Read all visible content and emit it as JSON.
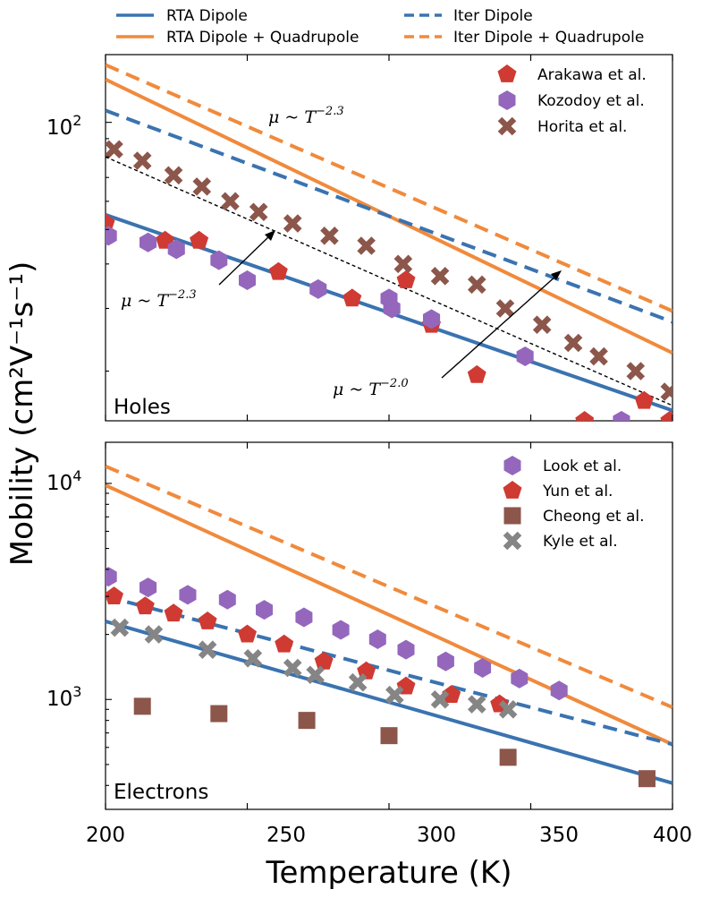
{
  "colors": {
    "blue": "#3a73b0",
    "orange": "#f08a3c",
    "red": "#cf3a32",
    "purple": "#9467bd",
    "brown": "#8c564b",
    "gray": "#858585"
  },
  "chart_data": {
    "type": "line",
    "xlabel": "Temperature (K)",
    "ylabel": "Mobility (cm²V⁻¹s⁻¹)",
    "xlim": [
      200,
      400
    ],
    "xticks": [
      200,
      250,
      300,
      350,
      400
    ],
    "xtick_labels": [
      "200",
      "250",
      "300",
      "350",
      "400"
    ],
    "top_legend": [
      {
        "label": "RTA Dipole",
        "color": "blue",
        "dash": "solid"
      },
      {
        "label": "RTA Dipole + Quadrupole",
        "color": "orange",
        "dash": "solid"
      },
      {
        "label": "Iter Dipole",
        "color": "blue",
        "dash": "dashed"
      },
      {
        "label": "Iter Dipole + Quadrupole",
        "color": "orange",
        "dash": "dashed"
      }
    ],
    "panels": [
      {
        "label": "Holes",
        "yscale": "log",
        "ylim": [
          14.5,
          155
        ],
        "yticks": [
          100
        ],
        "ytick_base": "10",
        "ytick_exp": [
          "2"
        ],
        "lines": [
          {
            "name": "RTA Dipole",
            "color": "blue",
            "dash": "solid",
            "x": [
              200,
              400
            ],
            "y": [
              55,
              15.5
            ]
          },
          {
            "name": "RTA Dipole + Quadrupole",
            "color": "orange",
            "dash": "solid",
            "x": [
              200,
              400
            ],
            "y": [
              132,
              22.5
            ]
          },
          {
            "name": "Iter Dipole",
            "color": "blue",
            "dash": "dashed",
            "x": [
              200,
              400
            ],
            "y": [
              108,
              27.5
            ]
          },
          {
            "name": "Iter Dipole + Quadrupole",
            "color": "orange",
            "dash": "dashed",
            "x": [
              200,
              400
            ],
            "y": [
              145,
              29.5
            ]
          },
          {
            "name": "fit",
            "color": "black",
            "dash": "fine",
            "x": [
              200,
              400
            ],
            "y": [
              80,
              16
            ]
          }
        ],
        "scatter": [
          {
            "name": "Arakawa et al.",
            "marker": "pentagon",
            "color": "red",
            "x": [
              200,
              221,
              233,
              261,
              287,
              306,
              315,
              331,
              369,
              390,
              399
            ],
            "y": [
              52,
              46.5,
              46.5,
              38,
              32,
              36,
              27,
              19.5,
              14.5,
              16.5,
              14.5
            ]
          },
          {
            "name": "Kozodoy et al.",
            "marker": "hexagon",
            "color": "purple",
            "x": [
              201,
              215,
              225,
              240,
              250,
              275,
              300,
              301,
              315,
              348,
              382
            ],
            "y": [
              48,
              46,
              44,
              41,
              36,
              34,
              32,
              30,
              28,
              22,
              14.5
            ]
          },
          {
            "name": "Horita et al.",
            "marker": "x",
            "color": "brown",
            "x": [
              203,
              213,
              224,
              234,
              244,
              254,
              266,
              279,
              292,
              305,
              318,
              331,
              341,
              354,
              365,
              374,
              387,
              399
            ],
            "y": [
              84,
              78,
              71,
              66,
              60,
              56,
              52,
              48,
              45,
              40,
              37,
              35,
              30,
              27,
              24,
              22,
              20,
              17.5
            ]
          }
        ],
        "legend": [
          "Arakawa et al.",
          "Kozodoy et al.",
          "Horita et al."
        ],
        "annotations": [
          {
            "base": "μ ~ T",
            "exp": "−2.3"
          },
          {
            "base": "μ ~ T",
            "exp": "−2.3"
          },
          {
            "base": "μ ~ T",
            "exp": "−2.0"
          }
        ]
      },
      {
        "label": "Electrons",
        "yscale": "log",
        "ylim": [
          310,
          15500
        ],
        "yticks": [
          1000,
          10000
        ],
        "ytick_base": "10",
        "ytick_exp": [
          "3",
          "4"
        ],
        "lines": [
          {
            "name": "RTA Dipole",
            "color": "blue",
            "dash": "solid",
            "x": [
              200,
              400
            ],
            "y": [
              2300,
              410
            ]
          },
          {
            "name": "RTA Dipole + Quadrupole",
            "color": "orange",
            "dash": "solid",
            "x": [
              200,
              400
            ],
            "y": [
              9800,
              620
            ]
          },
          {
            "name": "Iter Dipole",
            "color": "blue",
            "dash": "dashed",
            "x": [
              200,
              400
            ],
            "y": [
              3000,
              620
            ]
          },
          {
            "name": "Iter Dipole + Quadrupole",
            "color": "orange",
            "dash": "dashed",
            "x": [
              200,
              400
            ],
            "y": [
              12000,
              920
            ]
          }
        ],
        "scatter": [
          {
            "name": "Look et al.",
            "marker": "hexagon",
            "color": "purple",
            "x": [
              201,
              215,
              229,
              243,
              256,
              270,
              283,
              296,
              306,
              320,
              333,
              346,
              360
            ],
            "y": [
              3700,
              3300,
              3050,
              2900,
              2600,
              2400,
              2100,
              1900,
              1700,
              1500,
              1400,
              1250,
              1100
            ]
          },
          {
            "name": "Yun et al.",
            "marker": "pentagon",
            "color": "red",
            "x": [
              203,
              214,
              224,
              236,
              250,
              263,
              277,
              292,
              306,
              322,
              339
            ],
            "y": [
              3000,
              2700,
              2500,
              2300,
              2000,
              1800,
              1500,
              1350,
              1150,
              1050,
              950
            ]
          },
          {
            "name": "Cheong et al.",
            "marker": "square",
            "color": "brown",
            "x": [
              213,
              240,
              271,
              300,
              342,
              391
            ],
            "y": [
              930,
              860,
              800,
              680,
              540,
              430
            ]
          },
          {
            "name": "Kyle et al.",
            "marker": "x",
            "color": "gray",
            "x": [
              205,
              217,
              236,
              252,
              266,
              274,
              289,
              302,
              318,
              331,
              342
            ],
            "y": [
              2150,
              2000,
              1700,
              1550,
              1400,
              1300,
              1200,
              1050,
              1000,
              950,
              900
            ]
          }
        ],
        "legend": [
          "Look et al.",
          "Yun et al.",
          "Cheong et al.",
          "Kyle et al."
        ]
      }
    ]
  }
}
